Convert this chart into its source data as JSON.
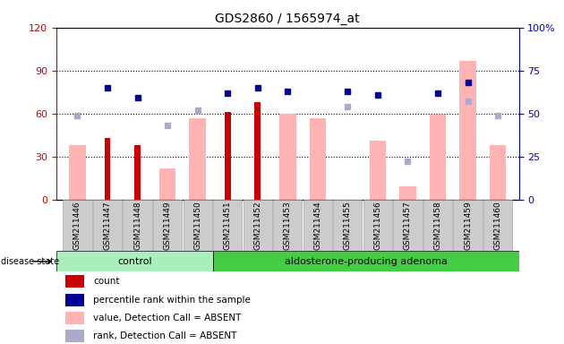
{
  "title": "GDS2860 / 1565974_at",
  "samples": [
    "GSM211446",
    "GSM211447",
    "GSM211448",
    "GSM211449",
    "GSM211450",
    "GSM211451",
    "GSM211452",
    "GSM211453",
    "GSM211454",
    "GSM211455",
    "GSM211456",
    "GSM211457",
    "GSM211458",
    "GSM211459",
    "GSM211460"
  ],
  "count": [
    null,
    43,
    38,
    null,
    null,
    61,
    68,
    null,
    null,
    null,
    null,
    null,
    null,
    null,
    null
  ],
  "percentile_rank": [
    null,
    65,
    59,
    null,
    null,
    62,
    65,
    63,
    null,
    63,
    61,
    null,
    62,
    68,
    null
  ],
  "value_absent": [
    38,
    null,
    null,
    22,
    57,
    null,
    null,
    60,
    57,
    null,
    41,
    9,
    59,
    97,
    38
  ],
  "rank_absent": [
    49,
    null,
    null,
    43,
    52,
    null,
    null,
    null,
    null,
    54,
    null,
    22,
    null,
    57,
    49
  ],
  "left_ylim": [
    0,
    120
  ],
  "right_ylim": [
    0,
    100
  ],
  "left_yticks": [
    0,
    30,
    60,
    90,
    120
  ],
  "right_yticks": [
    0,
    25,
    50,
    75,
    100
  ],
  "left_ylabel_color": "#cc0000",
  "right_ylabel_color": "#0000cc",
  "colors": {
    "count_bar": "#cc0000",
    "percentile_marker": "#000099",
    "value_absent_bar": "#ffb3b3",
    "rank_absent_marker": "#aaaacc",
    "control_bg": "#aaeebb",
    "adenoma_bg": "#44cc44",
    "xticklabel_bg": "#cccccc"
  },
  "disease_state_label": "disease state",
  "group_labels": [
    "control",
    "aldosterone-producing adenoma"
  ],
  "control_count": 5,
  "adenoma_count": 10
}
